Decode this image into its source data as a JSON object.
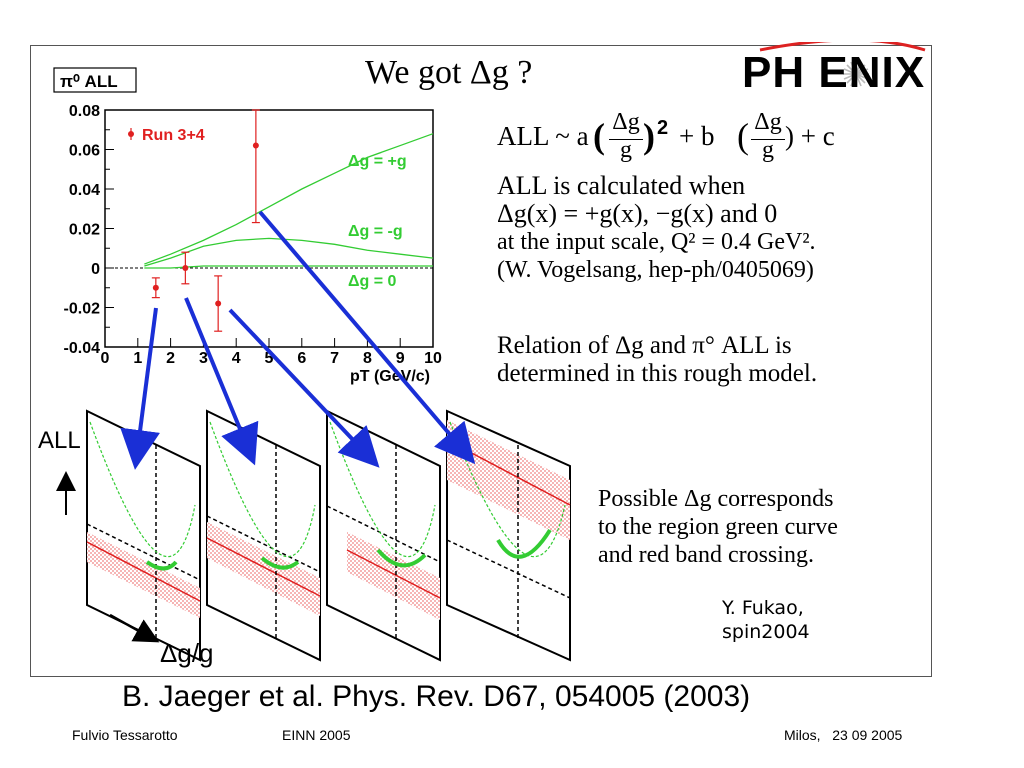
{
  "slide": {
    "title": "We got Δg ?",
    "logo_text": "PH ENIX",
    "formula": "ALL ~ a(Δg/g)² + b(Δg/g) + c",
    "formula_parts": {
      "lhs": "ALL ~ a",
      "sq": "2",
      "mid": "+ b",
      "tail": ") + c",
      "frac_num": "Δg",
      "frac_den": "g"
    },
    "text_block1": [
      "ALL is calculated when",
      "Δg(x) = +g(x), −g(x) and 0",
      "at the input scale, Q² = 0.4 GeV².",
      "(W. Vogelsang, hep-ph/0405069)"
    ],
    "text_block2": [
      "Relation of Δg and π° ALL is",
      "determined in this rough model."
    ],
    "text_block3": [
      "Possible Δg corresponds",
      "to the region green curve",
      "and red band crossing."
    ],
    "credit": [
      "Y. Fukao,",
      "spin2004"
    ],
    "reference": "B. Jaeger et al. Phys. Rev. D67, 054005 (2003)",
    "footer": {
      "left": "Fulvio Tessarotto",
      "center": "EINN 2005",
      "right": "Milos,   23 09 2005"
    },
    "diagram_labels": {
      "y_axis": "ALL",
      "x_axis": "Δg/g"
    }
  },
  "chart_data": {
    "type": "scatter",
    "title": "π⁰ ALL",
    "xlabel": "pT (GeV/c)",
    "ylabel": "",
    "xlim": [
      0,
      10
    ],
    "ylim": [
      -0.04,
      0.08
    ],
    "x_ticks": [
      "0",
      "1",
      "2",
      "3",
      "4",
      "5",
      "6",
      "7",
      "8",
      "9",
      "10"
    ],
    "y_ticks": [
      "-0.04",
      "-0.02",
      "0",
      "0.02",
      "0.04",
      "0.06",
      "0.08"
    ],
    "legend": {
      "label": "Run 3+4",
      "placement": "top-left"
    },
    "points": [
      {
        "x": 1.55,
        "y": -0.01,
        "err": 0.005
      },
      {
        "x": 2.45,
        "y": 0.0,
        "err": 0.008
      },
      {
        "x": 3.45,
        "y": -0.018,
        "err": 0.014
      },
      {
        "x": 4.6,
        "y": 0.062,
        "err": 0.039
      }
    ],
    "curves": [
      {
        "name": "Δg = +g",
        "x": [
          1.2,
          2,
          3,
          4,
          5,
          6,
          7,
          8,
          9,
          10
        ],
        "y": [
          0.002,
          0.007,
          0.014,
          0.022,
          0.031,
          0.04,
          0.048,
          0.056,
          0.062,
          0.068
        ]
      },
      {
        "name": "Δg = -g",
        "x": [
          1.2,
          2,
          3,
          4,
          5,
          6,
          7,
          8,
          9,
          10
        ],
        "y": [
          0.001,
          0.005,
          0.011,
          0.014,
          0.015,
          0.014,
          0.012,
          0.009,
          0.007,
          0.005
        ]
      },
      {
        "name": "Δg = 0",
        "x": [
          1.2,
          2,
          3,
          4,
          5,
          6,
          7,
          8,
          9,
          10
        ],
        "y": [
          0.0,
          0.0,
          0.001,
          0.001,
          0.001,
          0.001,
          0.001,
          0.001,
          0.001,
          0.001
        ]
      }
    ],
    "colors": {
      "data": "#e02020",
      "curves": "#33cc33",
      "arrows": "#1a2fd6"
    }
  }
}
